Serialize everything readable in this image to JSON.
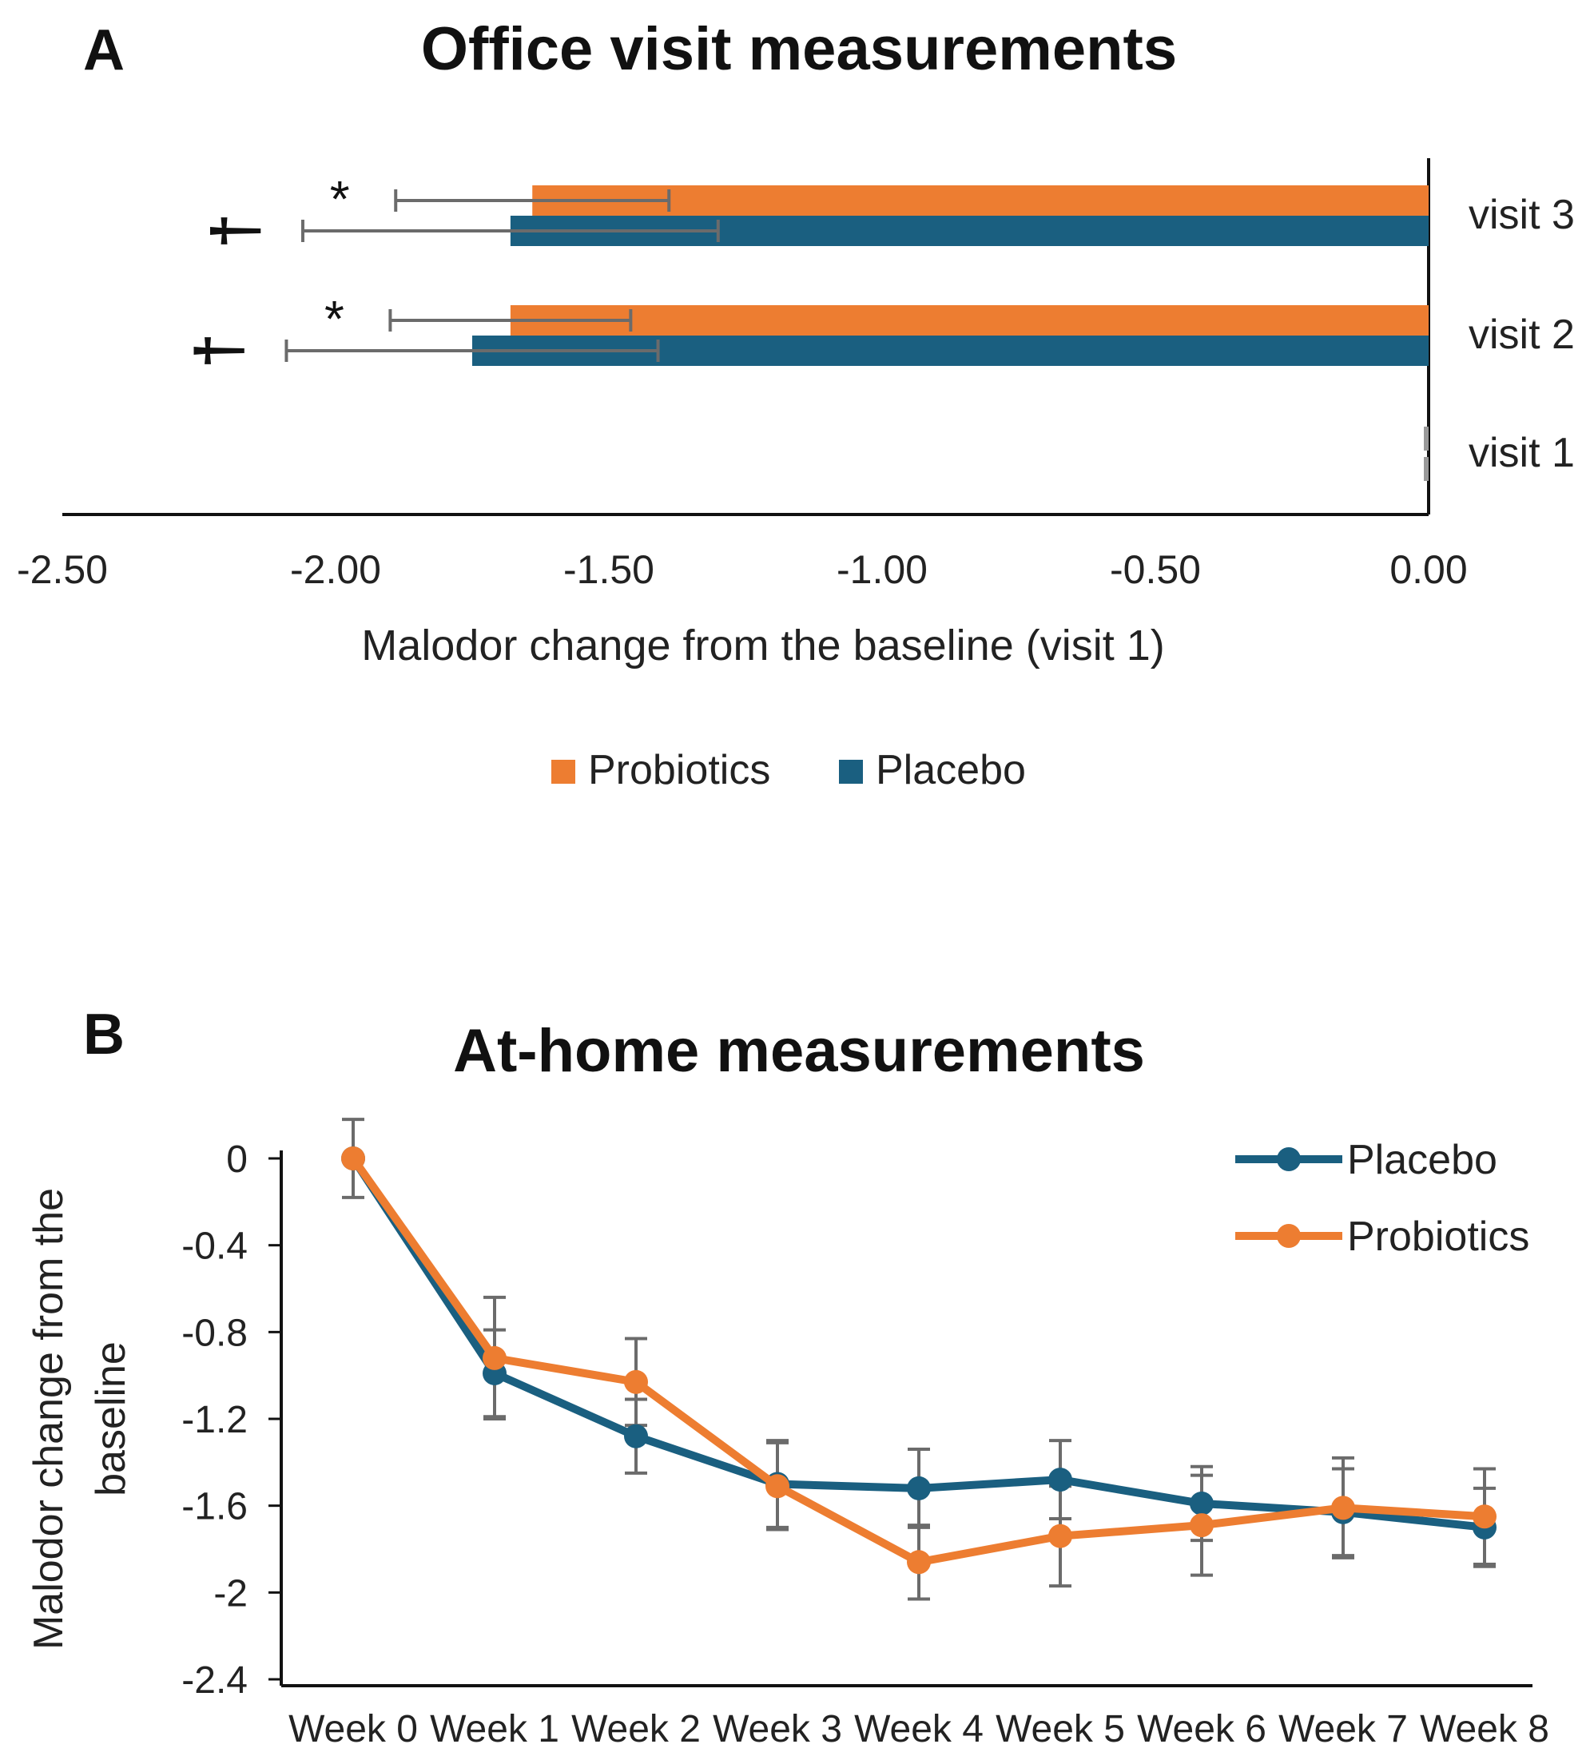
{
  "panelA": {
    "letter": "A",
    "title": "Office visit measurements"
  },
  "panelB": {
    "letter": "B",
    "title": "At-home measurements"
  },
  "chart_data": [
    {
      "type": "bar",
      "orientation": "horizontal",
      "title": "Office visit measurements",
      "categories": [
        "visit 3",
        "visit 2",
        "visit 1"
      ],
      "series": [
        {
          "name": "Probiotics",
          "color": "#ED7D31",
          "values": [
            -1.64,
            -1.68,
            0.0
          ],
          "error": [
            0.25,
            0.22,
            0.0
          ]
        },
        {
          "name": "Placebo",
          "color": "#1A5F80",
          "values": [
            -1.68,
            -1.75,
            0.0
          ],
          "error": [
            0.38,
            0.34,
            0.0
          ]
        }
      ],
      "xlabel": "Malodor change from the baseline (visit 1)",
      "xlim": [
        -2.5,
        0.0
      ],
      "xticks": [
        "-2.50",
        "-2.00",
        "-1.50",
        "-1.00",
        "-0.50",
        "0.00"
      ],
      "legend": "bottom",
      "annotations": [
        {
          "text": "*",
          "category": "visit 3",
          "series": "Probiotics"
        },
        {
          "text": "†",
          "category": "visit 3",
          "series": "Placebo"
        },
        {
          "text": "*",
          "category": "visit 2",
          "series": "Probiotics"
        },
        {
          "text": "†",
          "category": "visit 2",
          "series": "Placebo"
        }
      ]
    },
    {
      "type": "line",
      "title": "At-home measurements",
      "categories": [
        "Week 0",
        "Week 1",
        "Week 2",
        "Week 3",
        "Week 4",
        "Week 5",
        "Week 6",
        "Week 7",
        "Week 8"
      ],
      "series": [
        {
          "name": "Placebo",
          "color": "#1A5F80",
          "values": [
            0,
            -0.99,
            -1.28,
            -1.5,
            -1.52,
            -1.48,
            -1.59,
            -1.63,
            -1.7
          ],
          "error": [
            0.18,
            0.2,
            0.17,
            0.2,
            0.18,
            0.18,
            0.17,
            0.2,
            0.18
          ]
        },
        {
          "name": "Probiotics",
          "color": "#ED7D31",
          "values": [
            0,
            -0.92,
            -1.03,
            -1.51,
            -1.86,
            -1.74,
            -1.69,
            -1.61,
            -1.65
          ],
          "error": [
            0.0,
            0.28,
            0.2,
            0.2,
            0.17,
            0.23,
            0.23,
            0.23,
            0.22
          ]
        }
      ],
      "ylabel": "Malodor change from the baseline",
      "ylim": [
        -2.4,
        0
      ],
      "yticks": [
        "0",
        "-0.4",
        "-0.8",
        "-1.2",
        "-1.6",
        "-2",
        "-2.4"
      ],
      "legend": "top-right"
    }
  ]
}
